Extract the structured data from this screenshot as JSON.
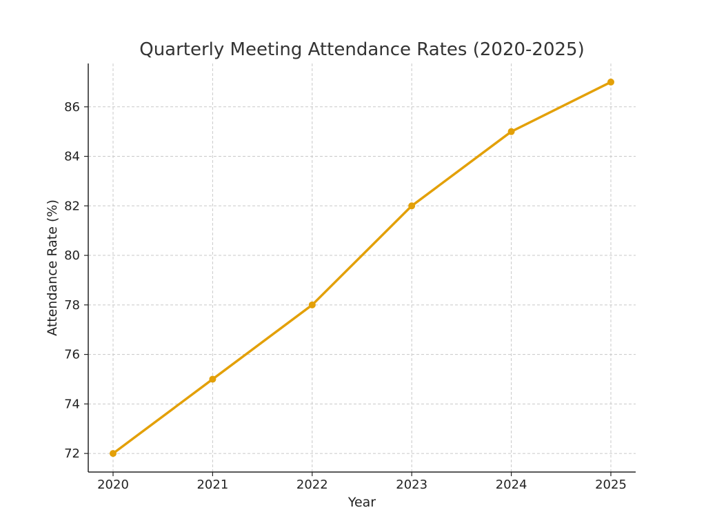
{
  "chart_data": {
    "type": "line",
    "title": "Quarterly Meeting Attendance Rates (2020-2025)",
    "xlabel": "Year",
    "ylabel": "Attendance Rate (%)",
    "x": [
      "2020",
      "2021",
      "2022",
      "2023",
      "2024",
      "2025"
    ],
    "series": [
      {
        "values": [
          72,
          75,
          78,
          82,
          85,
          87
        ],
        "color": "#E3A008",
        "marker": "circle"
      }
    ],
    "yticks": [
      72,
      74,
      76,
      78,
      80,
      82,
      84,
      86
    ],
    "ylim": [
      71.25,
      87.75
    ],
    "grid": true
  }
}
